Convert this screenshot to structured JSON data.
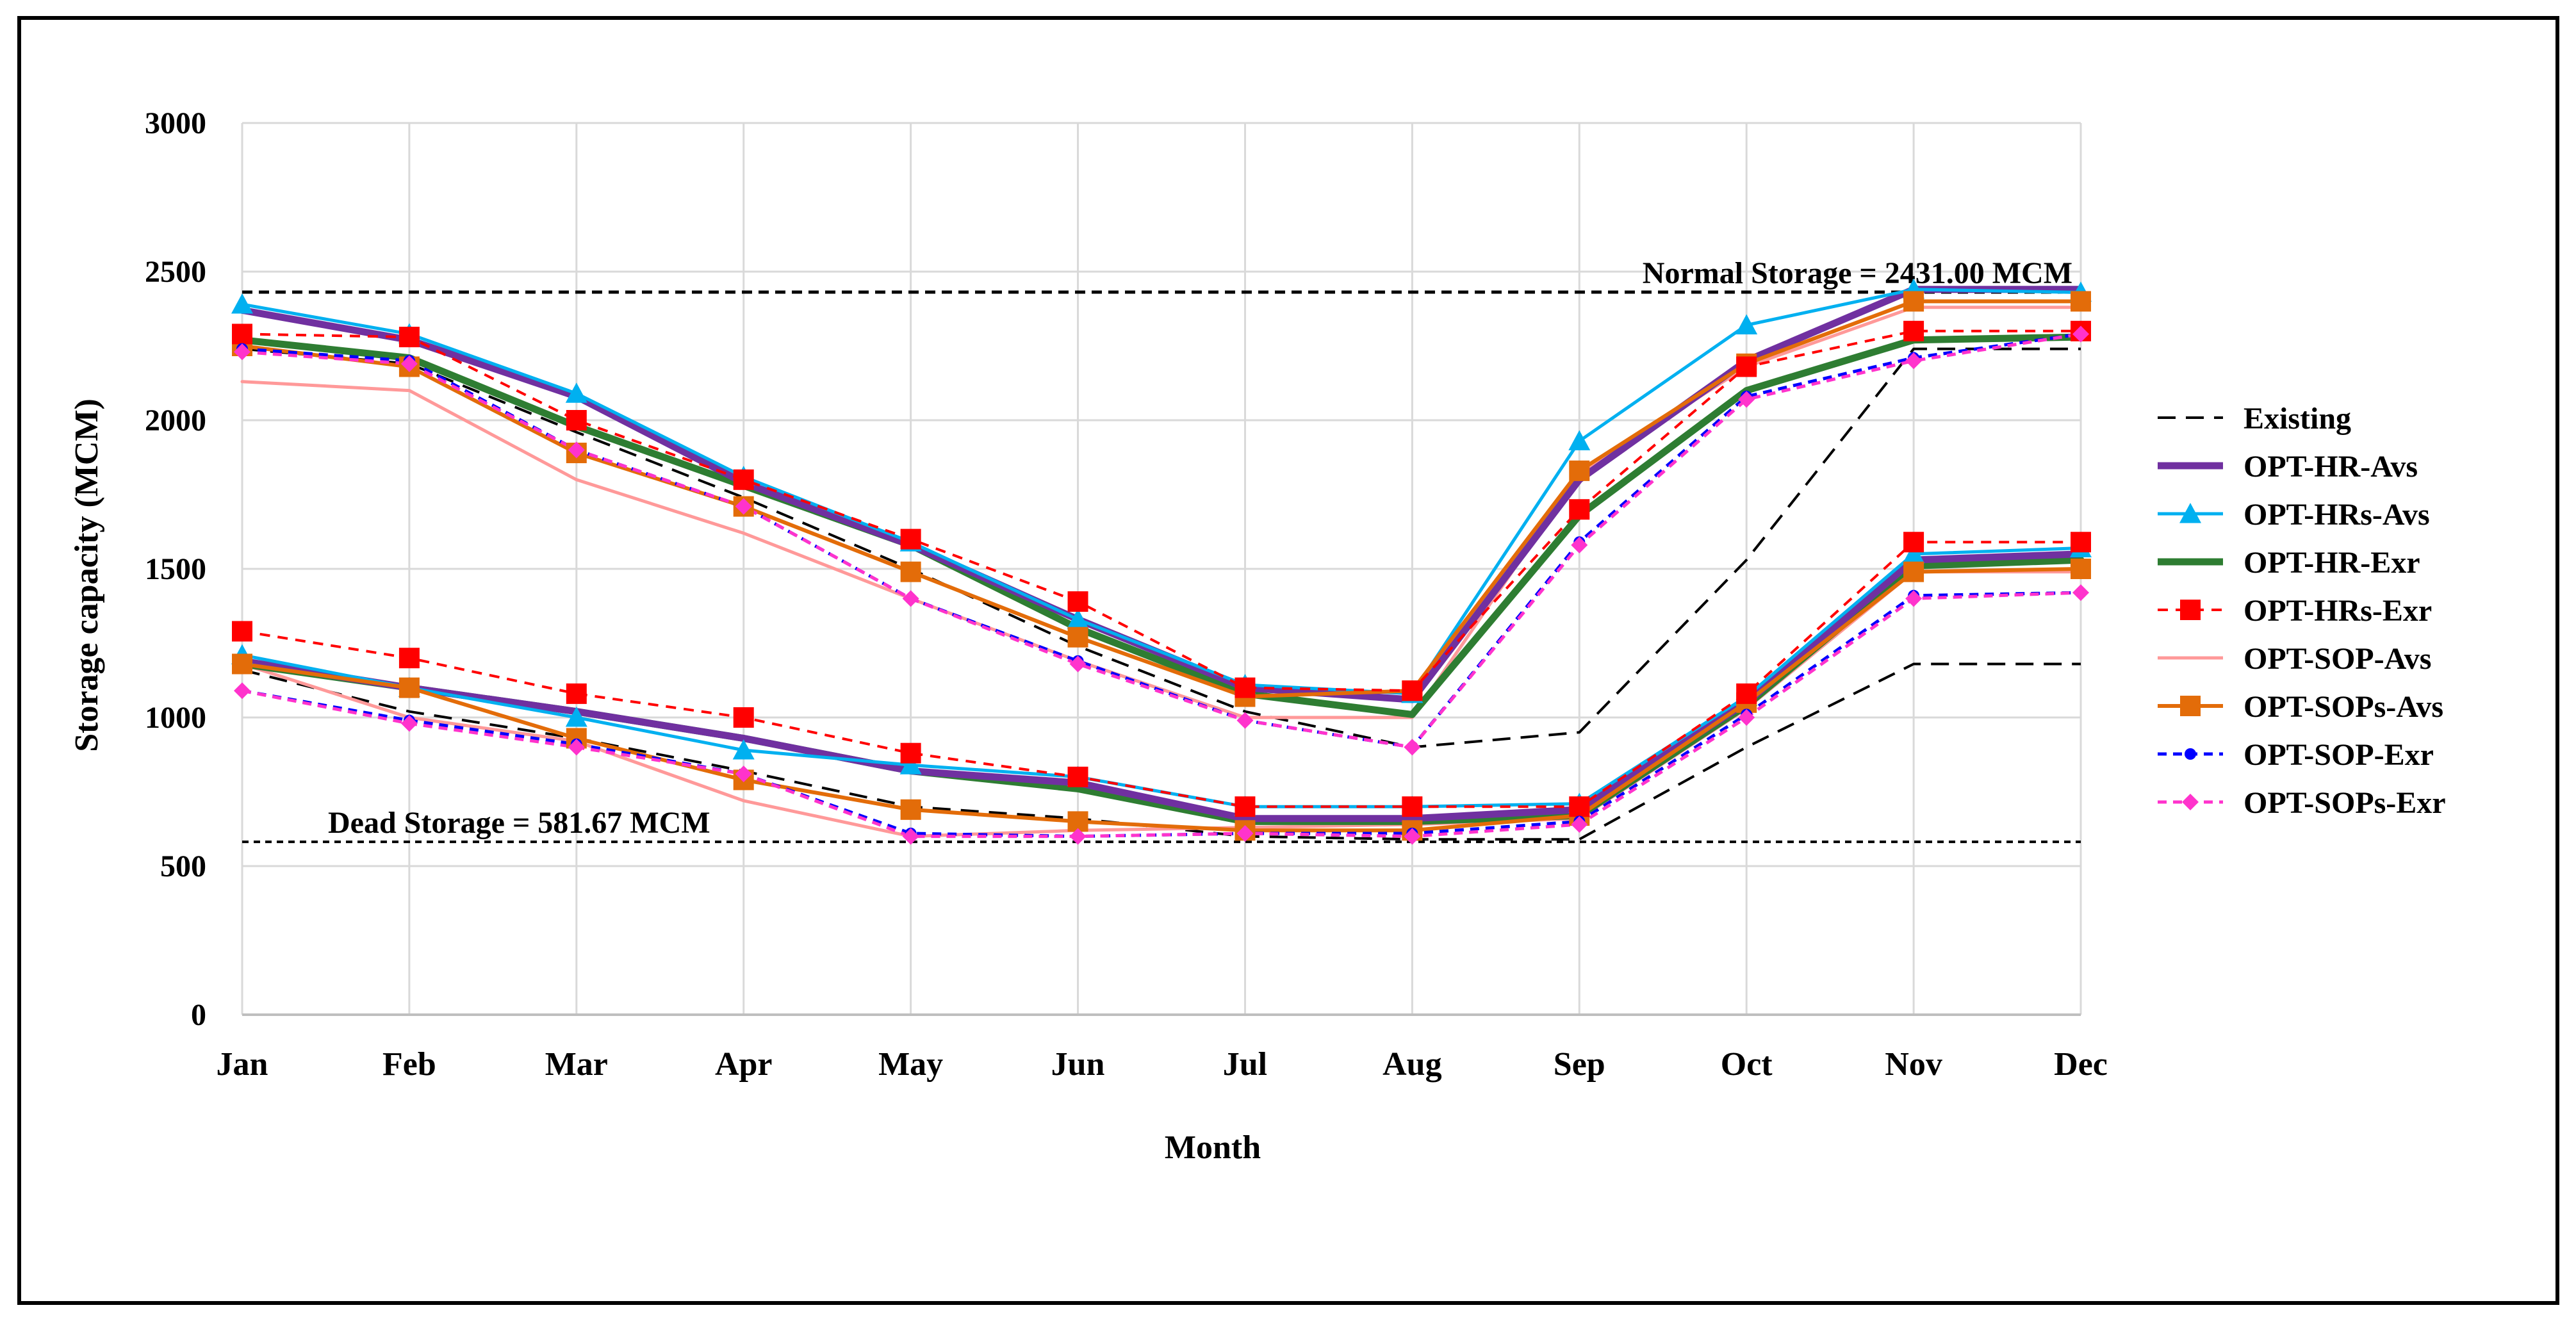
{
  "chart_data": {
    "type": "line",
    "title": "",
    "xlabel": "Month",
    "ylabel": "Storage capacity (MCM)",
    "categories": [
      "Jan",
      "Feb",
      "Mar",
      "Apr",
      "May",
      "Jun",
      "Jul",
      "Aug",
      "Sep",
      "Oct",
      "Nov",
      "Dec"
    ],
    "ylim": [
      0,
      3000
    ],
    "yticks": [
      "0",
      "500",
      "1000",
      "1500",
      "2000",
      "2500",
      "3000"
    ],
    "grid": "vertical and horizontal",
    "legend_position": "right",
    "reference_lines": [
      {
        "label": "Normal Storage = 2431.00 MCM",
        "value": 2431.0
      },
      {
        "label": "Dead Storage = 581.67  MCM",
        "value": 581.67
      }
    ],
    "legend": [
      {
        "name": "Existing",
        "color": "#000000",
        "dash": "dashed",
        "marker": "none"
      },
      {
        "name": "OPT-HR-Avs",
        "color": "#7030a0",
        "dash": "solid",
        "marker": "none"
      },
      {
        "name": "OPT-HRs-Avs",
        "color": "#00b0f0",
        "dash": "solid",
        "marker": "triangle"
      },
      {
        "name": "OPT-HR-Exr",
        "color": "#2e7d32",
        "dash": "solid",
        "marker": "none"
      },
      {
        "name": "OPT-HRs-Exr",
        "color": "#ff0000",
        "dash": "dashed",
        "marker": "square"
      },
      {
        "name": "OPT-SOP-Avs",
        "color": "#ff9999",
        "dash": "solid",
        "marker": "none"
      },
      {
        "name": "OPT-SOPs-Avs",
        "color": "#e36c09",
        "dash": "solid",
        "marker": "square"
      },
      {
        "name": "OPT-SOP-Exr",
        "color": "#0000ff",
        "dash": "dashed",
        "marker": "circle"
      },
      {
        "name": "OPT-SOPs-Exr",
        "color": "#ff33cc",
        "dash": "dashed",
        "marker": "diamond"
      }
    ],
    "series": [
      {
        "name": "Existing (upper)",
        "legend": "Existing",
        "values": [
          2240,
          2190,
          1960,
          1740,
          1500,
          1240,
          1020,
          900,
          950,
          1530,
          2240,
          2240
        ]
      },
      {
        "name": "Existing (lower)",
        "legend": "Existing",
        "values": [
          1160,
          1020,
          930,
          820,
          700,
          660,
          600,
          590,
          590,
          900,
          1180,
          1180
        ]
      },
      {
        "name": "OPT-SOP-Avs (upper)",
        "legend": "OPT-SOP-Avs",
        "values": [
          2130,
          2100,
          1800,
          1620,
          1400,
          1190,
          1000,
          1000,
          1820,
          2180,
          2380,
          2380
        ]
      },
      {
        "name": "OPT-SOP-Avs (lower)",
        "legend": "OPT-SOP-Avs",
        "values": [
          1180,
          1000,
          920,
          720,
          600,
          620,
          630,
          640,
          660,
          1030,
          1490,
          1490
        ]
      },
      {
        "name": "OPT-HR-Exr (upper)",
        "legend": "OPT-HR-Exr",
        "values": [
          2270,
          2210,
          1980,
          1780,
          1580,
          1300,
          1080,
          1010,
          1680,
          2100,
          2270,
          2280
        ]
      },
      {
        "name": "OPT-HR-Exr (lower)",
        "legend": "OPT-HR-Exr",
        "values": [
          1180,
          1100,
          1020,
          930,
          820,
          760,
          650,
          650,
          670,
          1040,
          1510,
          1530
        ]
      },
      {
        "name": "OPT-HR-Avs (upper)",
        "legend": "OPT-HR-Avs",
        "values": [
          2370,
          2270,
          2080,
          1790,
          1580,
          1330,
          1100,
          1060,
          1800,
          2200,
          2440,
          2440
        ]
      },
      {
        "name": "OPT-HR-Avs (lower)",
        "legend": "OPT-HR-Avs",
        "values": [
          1190,
          1100,
          1020,
          930,
          820,
          780,
          660,
          660,
          690,
          1050,
          1530,
          1550
        ]
      },
      {
        "name": "OPT-HRs-Avs (upper)",
        "legend": "OPT-HRs-Avs",
        "values": [
          2390,
          2290,
          2090,
          1810,
          1590,
          1330,
          1110,
          1080,
          1930,
          2320,
          2440,
          2430
        ]
      },
      {
        "name": "OPT-HRs-Avs (lower)",
        "legend": "OPT-HRs-Avs",
        "values": [
          1210,
          1100,
          1000,
          890,
          840,
          800,
          700,
          700,
          710,
          1070,
          1550,
          1570
        ]
      },
      {
        "name": "OPT-SOPs-Avs (upper)",
        "legend": "OPT-SOPs-Avs",
        "values": [
          2250,
          2180,
          1890,
          1710,
          1490,
          1270,
          1070,
          1090,
          1830,
          2190,
          2400,
          2400
        ]
      },
      {
        "name": "OPT-SOPs-Avs (lower)",
        "legend": "OPT-SOPs-Avs",
        "values": [
          1180,
          1100,
          930,
          790,
          690,
          650,
          620,
          620,
          670,
          1050,
          1490,
          1500
        ]
      },
      {
        "name": "OPT-HRs-Exr (upper)",
        "legend": "OPT-HRs-Exr",
        "values": [
          2290,
          2280,
          2000,
          1800,
          1600,
          1390,
          1100,
          1090,
          1700,
          2180,
          2300,
          2300
        ]
      },
      {
        "name": "OPT-HRs-Exr (lower)",
        "legend": "OPT-HRs-Exr",
        "values": [
          1290,
          1200,
          1080,
          1000,
          880,
          800,
          700,
          700,
          700,
          1080,
          1590,
          1590
        ]
      },
      {
        "name": "OPT-SOP-Exr (upper)",
        "legend": "OPT-SOP-Exr",
        "values": [
          2240,
          2200,
          1900,
          1710,
          1400,
          1190,
          990,
          900,
          1590,
          2080,
          2210,
          2290
        ]
      },
      {
        "name": "OPT-SOP-Exr (lower)",
        "legend": "OPT-SOP-Exr",
        "values": [
          1090,
          990,
          910,
          810,
          610,
          600,
          610,
          610,
          650,
          1010,
          1410,
          1420
        ]
      },
      {
        "name": "OPT-SOPs-Exr (upper)",
        "legend": "OPT-SOPs-Exr",
        "values": [
          2230,
          2190,
          1900,
          1710,
          1400,
          1180,
          990,
          900,
          1580,
          2070,
          2200,
          2290
        ]
      },
      {
        "name": "OPT-SOPs-Exr (lower)",
        "legend": "OPT-SOPs-Exr",
        "values": [
          1090,
          980,
          900,
          810,
          600,
          600,
          610,
          600,
          640,
          1000,
          1400,
          1420
        ]
      }
    ]
  }
}
